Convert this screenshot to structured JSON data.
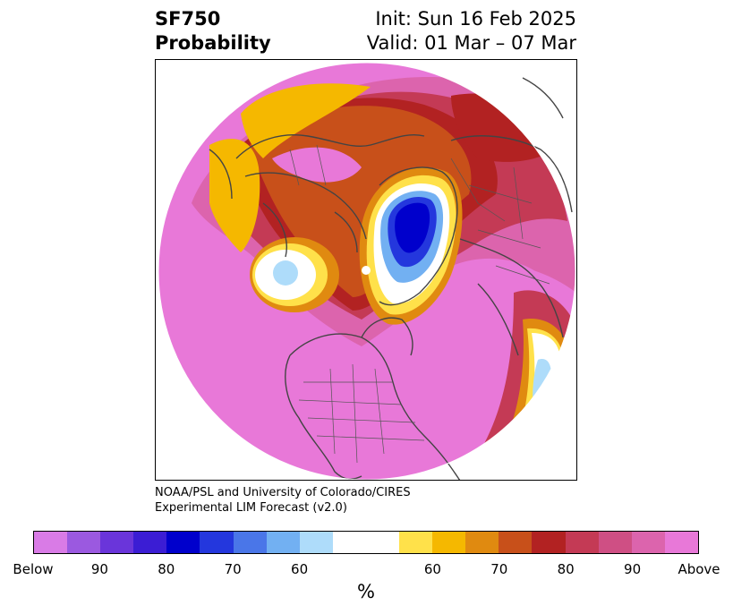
{
  "header": {
    "variable": "SF750",
    "product": "Probability",
    "init": "Init: Sun 16 Feb 2025",
    "valid": "Valid: 01 Mar – 07 Mar"
  },
  "credit": {
    "line1": "NOAA/PSL and University of Colorado/CIRES",
    "line2": "Experimental LIM Forecast (v2.0)"
  },
  "colorbar": {
    "unit": "%",
    "segments": [
      {
        "color": "#d97be6"
      },
      {
        "color": "#9b59e0"
      },
      {
        "color": "#6a35da"
      },
      {
        "color": "#3b1dd4"
      },
      {
        "color": "#0000cc"
      },
      {
        "color": "#2437dd"
      },
      {
        "color": "#4a76e8"
      },
      {
        "color": "#72b0f2"
      },
      {
        "color": "#aedcfa"
      },
      {
        "color": "#ffffff",
        "wide": true
      },
      {
        "color": "#ffe14a"
      },
      {
        "color": "#f5b800"
      },
      {
        "color": "#e08a10"
      },
      {
        "color": "#c8501a"
      },
      {
        "color": "#b22222"
      },
      {
        "color": "#c43a55"
      },
      {
        "color": "#cf4f84"
      },
      {
        "color": "#dc64ad"
      },
      {
        "color": "#e878d8"
      }
    ],
    "ticks": [
      "Below",
      "90",
      "80",
      "70",
      "60",
      "60",
      "70",
      "80",
      "90",
      "Above"
    ]
  }
}
